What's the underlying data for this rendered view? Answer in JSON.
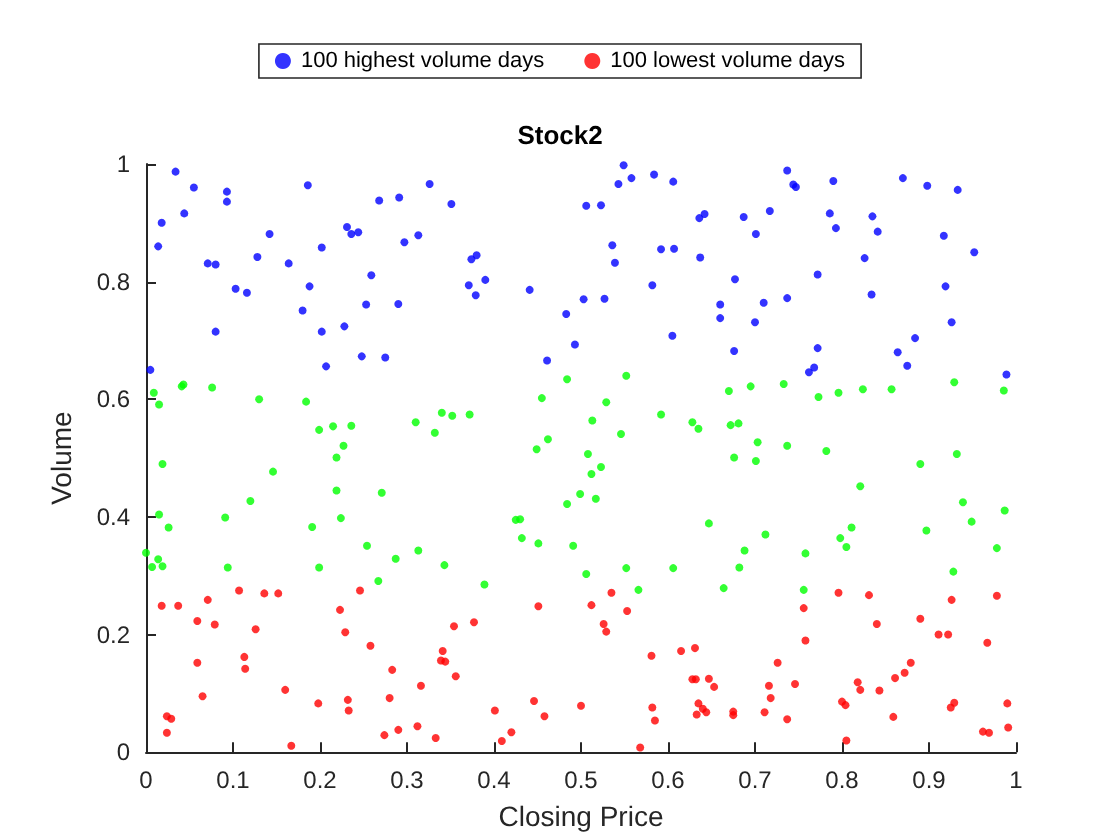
{
  "chart_data": {
    "type": "scatter",
    "title": "Stock2",
    "xlabel": "Closing Price",
    "ylabel": "Volume",
    "xlim": [
      0,
      1
    ],
    "ylim": [
      0,
      1
    ],
    "xticks": [
      0,
      0.1,
      0.2,
      0.3,
      0.4,
      0.5,
      0.6,
      0.7,
      0.8,
      0.9,
      1
    ],
    "yticks": [
      0,
      0.2,
      0.4,
      0.6,
      0.8,
      1
    ],
    "grid": false,
    "legend": "top",
    "marker": "circle",
    "series": [
      {
        "name": "100 highest volume days",
        "color": "#0000ff",
        "x": [
          0.034,
          0.055,
          0.093,
          0.093,
          0.018,
          0.044,
          0.014,
          0.071,
          0.08,
          0.142,
          0.128,
          0.164,
          0.186,
          0.202,
          0.103,
          0.116,
          0.188,
          0.18,
          0.08,
          0.202,
          0.228,
          0.207,
          0.248,
          0.275,
          0.253,
          0.29,
          0.259,
          0.231,
          0.236,
          0.244,
          0.268,
          0.291,
          0.297,
          0.313,
          0.326,
          0.005,
          0.351,
          0.374,
          0.38,
          0.371,
          0.379,
          0.39,
          0.441,
          0.483,
          0.503,
          0.527,
          0.493,
          0.461,
          0.506,
          0.523,
          0.536,
          0.539,
          0.543,
          0.549,
          0.558,
          0.584,
          0.606,
          0.582,
          0.592,
          0.607,
          0.636,
          0.642,
          0.637,
          0.605,
          0.66,
          0.66,
          0.737,
          0.744,
          0.747,
          0.79,
          0.87,
          0.898,
          0.933,
          0.687,
          0.717,
          0.701,
          0.786,
          0.793,
          0.835,
          0.841,
          0.917,
          0.952,
          0.826,
          0.772,
          0.677,
          0.919,
          0.71,
          0.737,
          0.834,
          0.7,
          0.926,
          0.884,
          0.864,
          0.875,
          0.676,
          0.772,
          0.762,
          0.768,
          0.989
        ],
        "values": [
          0.987,
          0.96,
          0.953,
          0.936,
          0.9,
          0.916,
          0.86,
          0.831,
          0.829,
          0.881,
          0.842,
          0.831,
          0.964,
          0.858,
          0.788,
          0.781,
          0.792,
          0.751,
          0.715,
          0.715,
          0.724,
          0.656,
          0.673,
          0.671,
          0.761,
          0.762,
          0.811,
          0.893,
          0.881,
          0.884,
          0.938,
          0.943,
          0.867,
          0.879,
          0.966,
          0.65,
          0.932,
          0.838,
          0.845,
          0.794,
          0.777,
          0.803,
          0.786,
          0.745,
          0.77,
          0.771,
          0.693,
          0.666,
          0.929,
          0.93,
          0.862,
          0.832,
          0.966,
          0.998,
          0.976,
          0.982,
          0.97,
          0.794,
          0.855,
          0.856,
          0.908,
          0.915,
          0.841,
          0.708,
          0.761,
          0.738,
          0.989,
          0.965,
          0.961,
          0.971,
          0.976,
          0.963,
          0.956,
          0.91,
          0.92,
          0.881,
          0.916,
          0.891,
          0.911,
          0.885,
          0.878,
          0.85,
          0.84,
          0.812,
          0.804,
          0.792,
          0.764,
          0.772,
          0.778,
          0.731,
          0.731,
          0.704,
          0.68,
          0.657,
          0.682,
          0.687,
          0.646,
          0.654,
          0.642
        ]
      },
      {
        "color": "#00ff00",
        "x": [
          0.009,
          0.015,
          0.041,
          0.043,
          0.076,
          0.13,
          0.184,
          0.199,
          0.215,
          0.236,
          0.227,
          0.31,
          0.332,
          0.34,
          0.352,
          0.372,
          0.484,
          0.552,
          0.455,
          0.529,
          0.513,
          0.546,
          0.462,
          0.449,
          0.508,
          0.592,
          0.628,
          0.635,
          0.67,
          0.695,
          0.733,
          0.773,
          0.796,
          0.824,
          0.857,
          0.929,
          0.986,
          0.672,
          0.681,
          0.703,
          0.737,
          0.782,
          0.932,
          0.019,
          0.146,
          0.12,
          0.015,
          0.026,
          0.091,
          0.0,
          0.014,
          0.007,
          0.019,
          0.094,
          0.219,
          0.219,
          0.224,
          0.271,
          0.191,
          0.254,
          0.287,
          0.313,
          0.199,
          0.267,
          0.512,
          0.523,
          0.499,
          0.517,
          0.484,
          0.425,
          0.43,
          0.432,
          0.451,
          0.491,
          0.343,
          0.389,
          0.506,
          0.552,
          0.566,
          0.606,
          0.647,
          0.676,
          0.701,
          0.89,
          0.821,
          0.939,
          0.949,
          0.987,
          0.712,
          0.811,
          0.798,
          0.805,
          0.897,
          0.688,
          0.758,
          0.978,
          0.682,
          0.928,
          0.664,
          0.756
        ],
        "values": [
          0.611,
          0.591,
          0.622,
          0.625,
          0.62,
          0.6,
          0.596,
          0.548,
          0.554,
          0.555,
          0.521,
          0.561,
          0.543,
          0.577,
          0.572,
          0.574,
          0.634,
          0.64,
          0.602,
          0.595,
          0.564,
          0.541,
          0.532,
          0.515,
          0.507,
          0.574,
          0.561,
          0.55,
          0.614,
          0.622,
          0.626,
          0.604,
          0.611,
          0.617,
          0.617,
          0.629,
          0.615,
          0.556,
          0.559,
          0.527,
          0.521,
          0.512,
          0.507,
          0.49,
          0.477,
          0.427,
          0.404,
          0.382,
          0.399,
          0.339,
          0.328,
          0.315,
          0.316,
          0.314,
          0.501,
          0.445,
          0.398,
          0.441,
          0.383,
          0.351,
          0.329,
          0.343,
          0.314,
          0.291,
          0.473,
          0.485,
          0.439,
          0.431,
          0.422,
          0.395,
          0.396,
          0.364,
          0.355,
          0.351,
          0.318,
          0.285,
          0.303,
          0.313,
          0.276,
          0.313,
          0.389,
          0.501,
          0.495,
          0.49,
          0.452,
          0.425,
          0.392,
          0.411,
          0.37,
          0.382,
          0.364,
          0.349,
          0.377,
          0.343,
          0.338,
          0.347,
          0.314,
          0.307,
          0.279,
          0.276
        ]
      },
      {
        "name": "100 lowest volume days",
        "color": "#ff0000",
        "x": [
          0.107,
          0.136,
          0.152,
          0.071,
          0.018,
          0.037,
          0.059,
          0.079,
          0.126,
          0.223,
          0.246,
          0.229,
          0.258,
          0.113,
          0.114,
          0.059,
          0.283,
          0.316,
          0.065,
          0.16,
          0.198,
          0.232,
          0.233,
          0.28,
          0.024,
          0.029,
          0.024,
          0.167,
          0.274,
          0.29,
          0.312,
          0.333,
          0.451,
          0.512,
          0.535,
          0.553,
          0.526,
          0.529,
          0.354,
          0.377,
          0.341,
          0.339,
          0.344,
          0.356,
          0.581,
          0.615,
          0.631,
          0.628,
          0.632,
          0.647,
          0.653,
          0.635,
          0.64,
          0.644,
          0.633,
          0.582,
          0.585,
          0.446,
          0.5,
          0.401,
          0.458,
          0.42,
          0.409,
          0.568,
          0.796,
          0.831,
          0.756,
          0.926,
          0.978,
          0.84,
          0.89,
          0.758,
          0.911,
          0.922,
          0.967,
          0.726,
          0.879,
          0.872,
          0.861,
          0.818,
          0.821,
          0.843,
          0.746,
          0.716,
          0.718,
          0.675,
          0.675,
          0.711,
          0.737,
          0.8,
          0.804,
          0.859,
          0.805,
          0.925,
          0.929,
          0.99,
          0.991,
          0.962,
          0.969
        ],
        "values": [
          0.275,
          0.27,
          0.27,
          0.259,
          0.249,
          0.249,
          0.223,
          0.217,
          0.209,
          0.242,
          0.275,
          0.204,
          0.181,
          0.162,
          0.142,
          0.152,
          0.14,
          0.113,
          0.095,
          0.106,
          0.083,
          0.089,
          0.071,
          0.092,
          0.061,
          0.057,
          0.033,
          0.011,
          0.029,
          0.038,
          0.044,
          0.024,
          0.248,
          0.25,
          0.271,
          0.24,
          0.218,
          0.205,
          0.214,
          0.221,
          0.172,
          0.156,
          0.154,
          0.129,
          0.164,
          0.172,
          0.177,
          0.124,
          0.124,
          0.125,
          0.111,
          0.083,
          0.074,
          0.068,
          0.064,
          0.076,
          0.054,
          0.087,
          0.079,
          0.071,
          0.061,
          0.034,
          0.019,
          0.008,
          0.271,
          0.267,
          0.245,
          0.259,
          0.266,
          0.218,
          0.227,
          0.19,
          0.2,
          0.2,
          0.186,
          0.152,
          0.152,
          0.135,
          0.126,
          0.119,
          0.106,
          0.105,
          0.116,
          0.113,
          0.092,
          0.069,
          0.063,
          0.068,
          0.056,
          0.086,
          0.08,
          0.06,
          0.02,
          0.076,
          0.084,
          0.083,
          0.042,
          0.035,
          0.033
        ]
      }
    ]
  }
}
